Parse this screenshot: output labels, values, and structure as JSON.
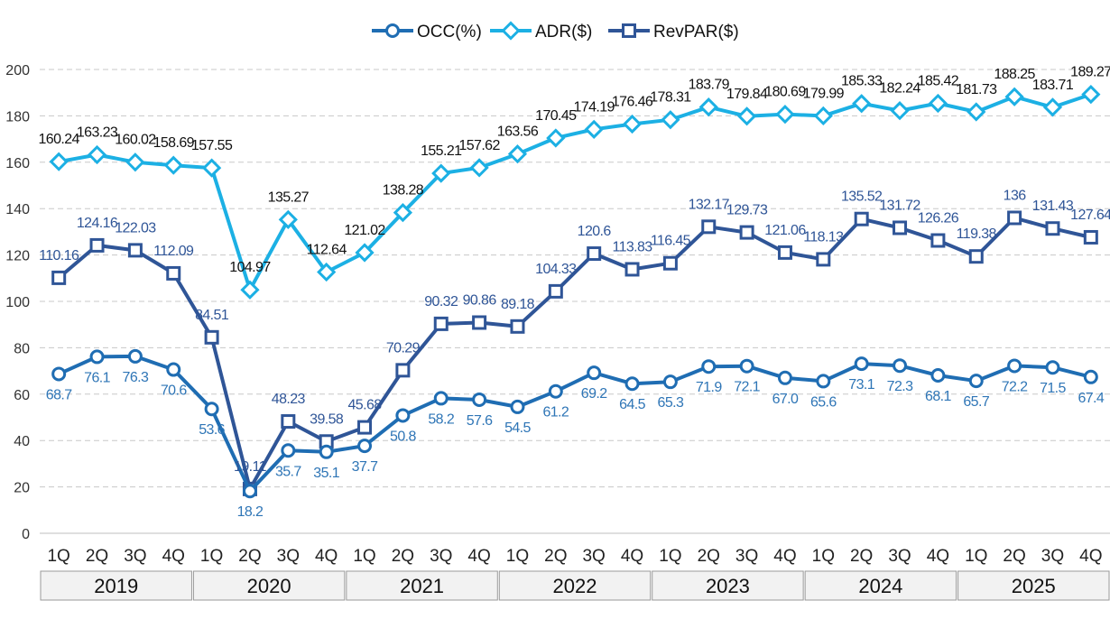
{
  "chart_data": {
    "type": "line",
    "title": "",
    "xlabel": "",
    "ylabel": "",
    "ylim": [
      0,
      200
    ],
    "yticks": [
      0,
      20,
      40,
      60,
      80,
      100,
      120,
      140,
      160,
      180,
      200
    ],
    "grid": "horizontal-dashed",
    "legend_position": "top-center",
    "quarters": [
      "1Q",
      "2Q",
      "3Q",
      "4Q"
    ],
    "years": [
      "2019",
      "2020",
      "2021",
      "2022",
      "2023",
      "2024",
      "2025"
    ],
    "series": [
      {
        "name": "OCC(%)",
        "color": "#1f6db3",
        "label_color": "#2e75b6",
        "marker": "circle",
        "values": [
          68.7,
          76.1,
          76.3,
          70.6,
          53.6,
          18.2,
          35.7,
          35.1,
          37.7,
          50.8,
          58.2,
          57.6,
          54.5,
          61.2,
          69.2,
          64.5,
          65.3,
          71.9,
          72.1,
          67.0,
          65.6,
          73.1,
          72.3,
          68.1,
          65.7,
          72.2,
          71.5,
          67.4
        ],
        "labels": [
          "68.7",
          "76.1",
          "76.3",
          "70.6",
          "53.6",
          "18.2",
          "35.7",
          "35.1",
          "37.7",
          "50.8",
          "58.2",
          "57.6",
          "54.5",
          "61.2",
          "69.2",
          "64.5",
          "65.3",
          "71.9",
          "72.1",
          "67.0",
          "65.6",
          "73.1",
          "72.3",
          "68.1",
          "65.7",
          "72.2",
          "71.5",
          "67.4"
        ]
      },
      {
        "name": "ADR($)",
        "color": "#1cb0e4",
        "label_color": "#111111",
        "marker": "diamond",
        "values": [
          160.24,
          163.23,
          160.02,
          158.69,
          157.55,
          104.97,
          135.27,
          112.64,
          121.02,
          138.28,
          155.21,
          157.62,
          163.56,
          170.45,
          174.19,
          176.46,
          178.31,
          183.79,
          179.84,
          180.69,
          179.99,
          185.33,
          182.24,
          185.42,
          181.73,
          188.25,
          183.71,
          189.27
        ],
        "labels": [
          "160.24",
          "163.23",
          "160.02",
          "158.69",
          "157.55",
          "104.97",
          "135.27",
          "112.64",
          "121.02",
          "138.28",
          "155.21",
          "157.62",
          "163.56",
          "170.45",
          "174.19",
          "176.46",
          "178.31",
          "183.79",
          "179.84",
          "180.69",
          "179.99",
          "185.33",
          "182.24",
          "185.42",
          "181.73",
          "188.25",
          "183.71",
          "189.27"
        ]
      },
      {
        "name": "RevPAR($)",
        "color": "#2f5597",
        "label_color": "#2f5597",
        "marker": "square",
        "values": [
          110.16,
          124.16,
          122.03,
          112.09,
          84.51,
          19.11,
          48.23,
          39.58,
          45.68,
          70.29,
          90.32,
          90.86,
          89.18,
          104.33,
          120.6,
          113.83,
          116.45,
          132.17,
          129.73,
          121.06,
          118.13,
          135.52,
          131.72,
          126.26,
          119.38,
          136,
          131.43,
          127.64
        ],
        "labels": [
          "110.16",
          "124.16",
          "122.03",
          "112.09",
          "84.51",
          "19.11",
          "48.23",
          "39.58",
          "45.68",
          "70.29",
          "90.32",
          "90.86",
          "89.18",
          "104.33",
          "120.6",
          "113.83",
          "116.45",
          "132.17",
          "129.73",
          "121.06",
          "118.13",
          "135.52",
          "131.72",
          "126.26",
          "119.38",
          "136",
          "131.43",
          "127.64"
        ]
      }
    ]
  }
}
